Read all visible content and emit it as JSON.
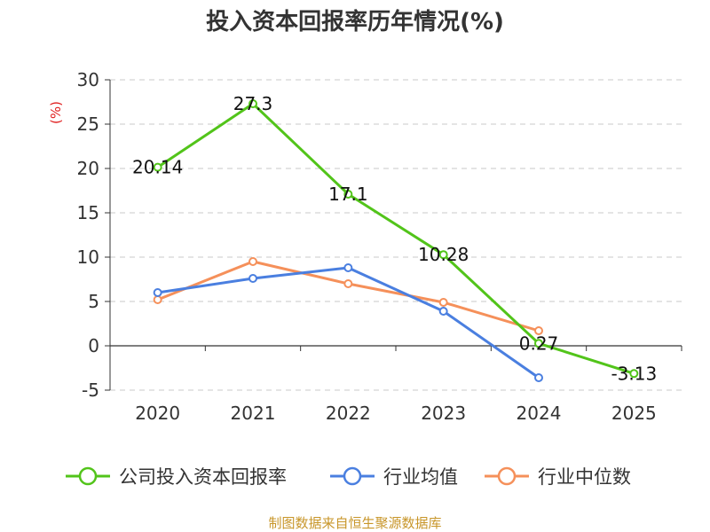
{
  "chart_data": {
    "type": "line",
    "title": "投入资本回报率历年情况(%)",
    "ylabel": "(%)",
    "xlabel": "",
    "categories": [
      "2020",
      "2021",
      "2022",
      "2023",
      "2024",
      "2025"
    ],
    "ylim": [
      -5,
      30
    ],
    "yticks": [
      30,
      25,
      20,
      15,
      10,
      5,
      0,
      -5
    ],
    "grid": true,
    "legend_position": "bottom",
    "series": [
      {
        "name": "公司投入资本回报率",
        "color": "#52c41a",
        "values": [
          20.14,
          27.3,
          17.1,
          10.28,
          0.27,
          -3.13
        ],
        "labels": [
          "20.14",
          "27.3",
          "17.1",
          "10.28",
          "0.27",
          "-3.13"
        ]
      },
      {
        "name": "行业均值",
        "color": "#4a7fe0",
        "values": [
          6.0,
          7.6,
          8.8,
          3.9,
          -3.6,
          null
        ]
      },
      {
        "name": "行业中位数",
        "color": "#f5905a",
        "values": [
          5.2,
          9.5,
          7.0,
          4.9,
          1.7,
          null
        ]
      }
    ]
  },
  "footer": {
    "source": "制图数据来自恒生聚源数据库"
  }
}
